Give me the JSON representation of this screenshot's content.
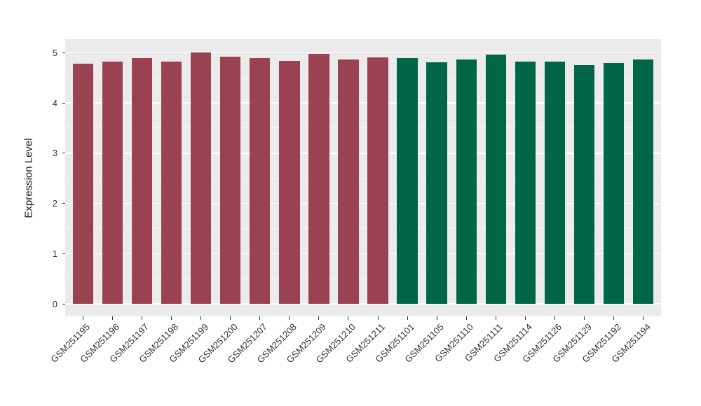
{
  "chart_data": {
    "type": "bar",
    "title": "",
    "xlabel": "",
    "ylabel": "Expression Level",
    "categories": [
      "GSM251195",
      "GSM251196",
      "GSM251197",
      "GSM251198",
      "GSM251199",
      "GSM251200",
      "GSM251207",
      "GSM251208",
      "GSM251209",
      "GSM251210",
      "GSM251211",
      "GSM251101",
      "GSM251105",
      "GSM251110",
      "GSM251111",
      "GSM251114",
      "GSM251126",
      "GSM251129",
      "GSM251192",
      "GSM251194"
    ],
    "values": [
      4.78,
      4.83,
      4.9,
      4.82,
      5.01,
      4.92,
      4.89,
      4.84,
      4.98,
      4.87,
      4.91,
      4.9,
      4.81,
      4.87,
      4.97,
      4.82,
      4.82,
      4.75,
      4.8,
      4.87
    ],
    "groups": [
      {
        "color": "#9B4252",
        "samples": [
          "GSM251195",
          "GSM251196",
          "GSM251197",
          "GSM251198",
          "GSM251199",
          "GSM251200",
          "GSM251207",
          "GSM251208",
          "GSM251209",
          "GSM251210",
          "GSM251211"
        ]
      },
      {
        "color": "#006647",
        "samples": [
          "GSM251101",
          "GSM251105",
          "GSM251110",
          "GSM251111",
          "GSM251114",
          "GSM251126",
          "GSM251129",
          "GSM251192",
          "GSM251194"
        ]
      }
    ],
    "yticks": [
      0,
      1,
      2,
      3,
      4,
      5
    ],
    "yticks_minor": [
      0.5,
      1.5,
      2.5,
      3.5,
      4.5
    ],
    "ylim": [
      -0.25,
      5.27
    ],
    "bar_width_fraction": 0.7,
    "x_tick_label_rotation_deg": 45,
    "legend_position": "none",
    "grid": "major-and-minor",
    "panel_background": "#EBEBEB",
    "grid_major_color": "#FFFFFF",
    "grid_minor_color": "#F5F5F5",
    "axis_text_color": "#333333"
  }
}
